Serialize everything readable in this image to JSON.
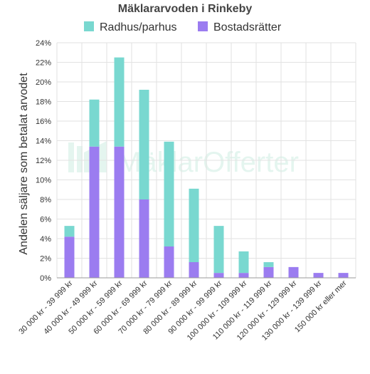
{
  "chart_data": {
    "type": "bar",
    "stacked": true,
    "title": "Mäklararvoden i Rinkeby",
    "ylabel": "Andelen säljare som betalat arvodet",
    "xlabel": "",
    "ylim": [
      0,
      24
    ],
    "y_ticks": [
      "0%",
      "2%",
      "4%",
      "6%",
      "8%",
      "10%",
      "12%",
      "14%",
      "16%",
      "18%",
      "20%",
      "22%",
      "24%"
    ],
    "grid": true,
    "legend_position": "top",
    "watermark": "MäklarOfferter",
    "categories": [
      "30 000 kr - 39 999 kr",
      "40 000 kr - 49 999 kr",
      "50 000 kr - 59 999 kr",
      "60 000 kr - 69 999 kr",
      "70 000 kr - 79 999 kr",
      "80 000 kr - 89 999 kr",
      "90 000 kr - 99 999 kr",
      "100 000 kr - 109 999 kr",
      "110 000 kr - 119 999 kr",
      "120 000 kr - 129 999 kr",
      "130 000 kr - 139 999 kr",
      "150 000 kr eller mer"
    ],
    "series": [
      {
        "name": "Bostadsrätter",
        "color": "#9b7cf0",
        "values": [
          4.2,
          13.4,
          13.4,
          8.0,
          3.2,
          1.6,
          0.5,
          0.5,
          1.1,
          1.1,
          0.5,
          0.5
        ]
      },
      {
        "name": "Radhus/parhus",
        "color": "#79d8d0",
        "values": [
          1.1,
          4.8,
          9.1,
          11.2,
          10.7,
          7.5,
          4.8,
          2.2,
          0.5,
          0,
          0,
          0
        ]
      }
    ]
  }
}
